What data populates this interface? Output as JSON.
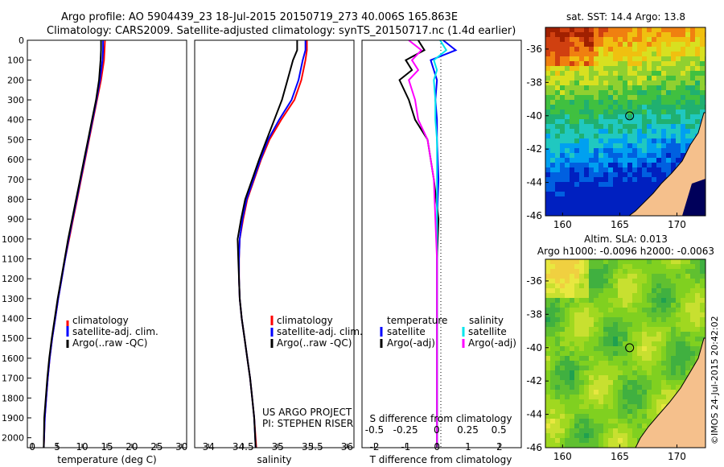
{
  "header": {
    "line1": "Argo profile: AO 5904439_23 18-Jul-2015 20150719_273 40.006S 165.863E",
    "line2": "Climatology: CARS2009. Satellite-adjusted climatology: synTS_20150717.nc (1.4d earlier)"
  },
  "credit": "©IMOS 24-Jul-2015 20:42:02",
  "project_note": {
    "line1": "US ARGO PROJECT",
    "line2": "PI: STEPHEN RISER"
  },
  "colors": {
    "climatology": "#ff0000",
    "satellite": "#0000ff",
    "argo": "#000000",
    "sal_satellite": "#00e5ee",
    "sal_argo": "#ff00ff"
  },
  "chart_data": [
    {
      "type": "line",
      "xlabel": "temperature (deg C)",
      "ylim": [
        2050,
        0
      ],
      "xlim": [
        -1,
        31
      ],
      "xticks": [
        0,
        5,
        10,
        15,
        20,
        25,
        30
      ],
      "yticks": [
        0,
        100,
        200,
        300,
        400,
        500,
        600,
        700,
        800,
        900,
        1000,
        1100,
        1200,
        1300,
        1400,
        1500,
        1600,
        1700,
        1800,
        1900,
        2000
      ],
      "legend": [
        "climatology",
        "satellite-adj. clim.",
        "Argo(..raw -QC)"
      ],
      "series": [
        {
          "name": "climatology",
          "color": "#ff0000",
          "x": [
            14.6,
            14.5,
            14.4,
            13.8,
            13.0,
            12.2,
            11.4,
            10.6,
            9.8,
            9.0,
            8.2,
            7.4,
            6.6,
            5.9,
            5.2,
            4.6,
            4.0,
            3.5,
            3.1,
            2.8,
            2.5,
            2.3
          ],
          "y": [
            0,
            50,
            100,
            200,
            300,
            400,
            500,
            600,
            700,
            800,
            900,
            1000,
            1100,
            1200,
            1300,
            1400,
            1500,
            1600,
            1700,
            1800,
            1900,
            2050
          ]
        },
        {
          "name": "satellite-adj. clim.",
          "color": "#0000ff",
          "x": [
            14.2,
            14.2,
            14.1,
            13.6,
            12.9,
            12.1,
            11.3,
            10.5,
            9.7,
            8.9,
            8.1,
            7.3,
            6.6,
            5.9,
            5.2,
            4.6,
            4.0,
            3.5,
            3.1,
            2.8,
            2.5,
            2.3
          ],
          "y": [
            0,
            50,
            100,
            200,
            300,
            400,
            500,
            600,
            700,
            800,
            900,
            1000,
            1100,
            1200,
            1300,
            1400,
            1500,
            1600,
            1700,
            1800,
            1900,
            2050
          ]
        },
        {
          "name": "Argo(..raw -QC)",
          "color": "#000000",
          "x": [
            13.8,
            13.8,
            13.7,
            13.4,
            12.8,
            12.0,
            11.2,
            10.4,
            9.6,
            8.8,
            8.0,
            7.2,
            6.5,
            5.8,
            5.1,
            4.5,
            3.9,
            3.4,
            3.0,
            2.7,
            2.4,
            2.3
          ],
          "y": [
            0,
            50,
            100,
            200,
            300,
            400,
            500,
            600,
            700,
            800,
            900,
            1000,
            1100,
            1200,
            1300,
            1400,
            1500,
            1600,
            1700,
            1800,
            1900,
            2050
          ]
        }
      ]
    },
    {
      "type": "line",
      "xlabel": "salinity",
      "ylim": [
        2050,
        0
      ],
      "xlim": [
        33.8,
        36.1
      ],
      "xticks": [
        34,
        34.5,
        35,
        35.5,
        36
      ],
      "xticklabels": [
        "34",
        "34.5",
        "35",
        "35.5",
        "36"
      ],
      "legend": [
        "climatology",
        "satellite-adj. clim.",
        "Argo(..raw -QC)"
      ],
      "series": [
        {
          "name": "climatology",
          "color": "#ff0000",
          "x": [
            35.42,
            35.42,
            35.4,
            35.34,
            35.24,
            35.05,
            34.88,
            34.76,
            34.66,
            34.56,
            34.5,
            34.45,
            34.44,
            34.44,
            34.45,
            34.48,
            34.52,
            34.56,
            34.6,
            34.63,
            34.66,
            34.69
          ],
          "y": [
            0,
            50,
            100,
            200,
            300,
            400,
            500,
            600,
            700,
            800,
            900,
            1000,
            1100,
            1200,
            1300,
            1400,
            1500,
            1600,
            1700,
            1800,
            1900,
            2050
          ]
        },
        {
          "name": "satellite-adj. clim.",
          "color": "#0000ff",
          "x": [
            35.4,
            35.4,
            35.36,
            35.3,
            35.2,
            35.02,
            34.86,
            34.75,
            34.65,
            34.55,
            34.49,
            34.45,
            34.44,
            34.44,
            34.45,
            34.48,
            34.52,
            34.56,
            34.6,
            34.63,
            34.66,
            34.68
          ],
          "y": [
            0,
            50,
            100,
            200,
            300,
            400,
            500,
            600,
            700,
            800,
            900,
            1000,
            1100,
            1200,
            1300,
            1400,
            1500,
            1600,
            1700,
            1800,
            1900,
            2050
          ]
        },
        {
          "name": "Argo(..raw -QC)",
          "color": "#000000",
          "x": [
            35.28,
            35.28,
            35.22,
            35.14,
            35.06,
            34.95,
            34.84,
            34.73,
            34.63,
            34.53,
            34.47,
            34.42,
            34.43,
            34.44,
            34.45,
            34.48,
            34.52,
            34.56,
            34.6,
            34.63,
            34.66,
            34.68
          ],
          "y": [
            0,
            50,
            100,
            200,
            300,
            400,
            500,
            600,
            700,
            800,
            900,
            1000,
            1100,
            1200,
            1300,
            1400,
            1500,
            1600,
            1700,
            1800,
            1900,
            2050
          ]
        }
      ]
    },
    {
      "type": "line",
      "xlabel": "T difference from climatology",
      "top_label": "S difference from climatology",
      "ylim": [
        2050,
        0
      ],
      "xlim": [
        -2.4,
        2.7
      ],
      "xticks": [
        -2,
        -1,
        0,
        1,
        2
      ],
      "top_ticks": [
        -0.5,
        -0.25,
        0,
        0.25,
        0.5
      ],
      "legend_titles": [
        "temperature",
        "salinity"
      ],
      "legend": [
        "satellite",
        "Argo(-adj)",
        "satellite",
        "Argo(-adj)"
      ],
      "series": [
        {
          "name": "satellite",
          "group": "temperature",
          "color": "#0000ff",
          "x": [
            0.2,
            0.6,
            -0.2,
            -0.1,
            0.0,
            -0.05,
            0.0,
            0.0,
            0.05,
            0.0,
            0.0,
            0.0,
            0.0,
            0.0,
            0.0,
            0.0
          ],
          "y": [
            0,
            50,
            100,
            150,
            200,
            300,
            400,
            500,
            700,
            900,
            1100,
            1300,
            1500,
            1700,
            1900,
            2050
          ]
        },
        {
          "name": "Argo(-adj)",
          "group": "temperature",
          "color": "#000000",
          "x": [
            -0.6,
            -0.4,
            -1.0,
            -0.8,
            -1.2,
            -0.9,
            -0.7,
            -0.3,
            -0.1,
            0.05,
            0.0,
            0.0,
            0.0,
            0.0,
            0.0,
            0.0
          ],
          "y": [
            0,
            50,
            100,
            150,
            200,
            300,
            400,
            500,
            700,
            900,
            1100,
            1300,
            1500,
            1700,
            1900,
            2050
          ]
        },
        {
          "name": "satellite",
          "group": "salinity",
          "color": "#00e5ee",
          "x": [
            0.1,
            0.3,
            -0.1,
            0.0,
            -0.1,
            -0.05,
            -0.05,
            0.0,
            0.0,
            0.0,
            0.0,
            0.0,
            0.0,
            0.0,
            0.0,
            0.0
          ],
          "y": [
            0,
            50,
            100,
            150,
            200,
            300,
            400,
            500,
            700,
            900,
            1100,
            1300,
            1500,
            1700,
            1900,
            2050
          ]
        },
        {
          "name": "Argo(-adj)",
          "group": "salinity",
          "color": "#ff00ff",
          "x": [
            -0.9,
            -0.5,
            -0.8,
            -0.6,
            -0.9,
            -0.7,
            -0.6,
            -0.3,
            -0.1,
            -0.05,
            0.0,
            0.0,
            0.0,
            0.0,
            0.0,
            0.0
          ],
          "y": [
            0,
            50,
            100,
            150,
            200,
            300,
            400,
            500,
            700,
            900,
            1100,
            1300,
            1500,
            1700,
            1900,
            2050
          ]
        }
      ]
    },
    {
      "type": "heatmap",
      "title": "sat. SST: 14.4 Argo: 13.8",
      "xticks": [
        160,
        165,
        170
      ],
      "yticks": [
        -36,
        -38,
        -40,
        -42,
        -44,
        -46
      ],
      "xlim": [
        158.5,
        172.5
      ],
      "ylim": [
        -46,
        -34.7
      ],
      "marker": {
        "lon": 165.863,
        "lat": -40.006
      }
    },
    {
      "type": "heatmap",
      "title": "Altim. SLA: 0.013",
      "subtitle": "Argo h1000: -0.0096 h2000: -0.0063",
      "xticks": [
        160,
        165,
        170
      ],
      "yticks": [
        -36,
        -38,
        -40,
        -42,
        -44,
        -46
      ],
      "xlim": [
        158.5,
        172.5
      ],
      "ylim": [
        -46,
        -34.7
      ],
      "marker": {
        "lon": 165.863,
        "lat": -40.006
      }
    }
  ]
}
